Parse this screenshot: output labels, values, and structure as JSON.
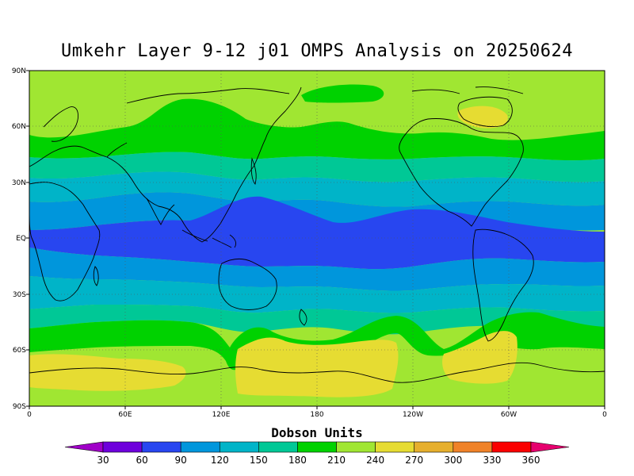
{
  "title": "Umkehr Layer 9-12 j01 OMPS Analysis on 20250624",
  "units_label": "Dobson Units",
  "lat_ticks": [
    "90N",
    "60N",
    "30N",
    "EQ",
    "30S",
    "60S",
    "90S"
  ],
  "lon_ticks": [
    "0",
    "60E",
    "120E",
    "180",
    "120W",
    "60W",
    "0"
  ],
  "colorbar": {
    "levels": [
      "30",
      "60",
      "90",
      "120",
      "150",
      "180",
      "210",
      "240",
      "270",
      "300",
      "330",
      "360"
    ],
    "colors": [
      "#a000c8",
      "#6e00dc",
      "#2846f0",
      "#0096dc",
      "#00b4c8",
      "#00c896",
      "#00d200",
      "#a0e632",
      "#e6dc32",
      "#e6af2d",
      "#f08228",
      "#fa0000",
      "#e6006e"
    ]
  },
  "chart_data": {
    "type": "heatmap",
    "title": "Umkehr Layer 9-12 j01 OMPS Analysis on 20250624",
    "xlabel": "",
    "ylabel": "",
    "x_ticks": [
      "0",
      "60E",
      "120E",
      "180",
      "120W",
      "60W",
      "0"
    ],
    "y_ticks": [
      "90N",
      "60N",
      "30N",
      "EQ",
      "30S",
      "60S",
      "90S"
    ],
    "xlim": [
      0,
      360
    ],
    "ylim": [
      -90,
      90
    ],
    "colorbar_label": "Dobson Units",
    "colorbar_levels": [
      30,
      60,
      90,
      120,
      150,
      180,
      210,
      240,
      270,
      300,
      330,
      360
    ],
    "zonal_bands": [
      {
        "lat_range": [
          75,
          90
        ],
        "value_range": [
          210,
          240
        ]
      },
      {
        "lat_range": [
          60,
          75
        ],
        "value_range": [
          180,
          210
        ]
      },
      {
        "lat_range": [
          50,
          60
        ],
        "value_range": [
          180,
          210
        ]
      },
      {
        "lat_range": [
          38,
          50
        ],
        "value_range": [
          150,
          180
        ]
      },
      {
        "lat_range": [
          25,
          38
        ],
        "value_range": [
          120,
          150
        ]
      },
      {
        "lat_range": [
          12,
          25
        ],
        "value_range": [
          90,
          120
        ]
      },
      {
        "lat_range": [
          -12,
          12
        ],
        "value_range": [
          60,
          90
        ]
      },
      {
        "lat_range": [
          -25,
          -12
        ],
        "value_range": [
          90,
          120
        ]
      },
      {
        "lat_range": [
          -38,
          -25
        ],
        "value_range": [
          120,
          150
        ]
      },
      {
        "lat_range": [
          -48,
          -38
        ],
        "value_range": [
          150,
          180
        ]
      },
      {
        "lat_range": [
          -58,
          -48
        ],
        "value_range": [
          180,
          210
        ]
      },
      {
        "lat_range": [
          -90,
          -58
        ],
        "value_range": [
          210,
          270
        ]
      }
    ]
  }
}
